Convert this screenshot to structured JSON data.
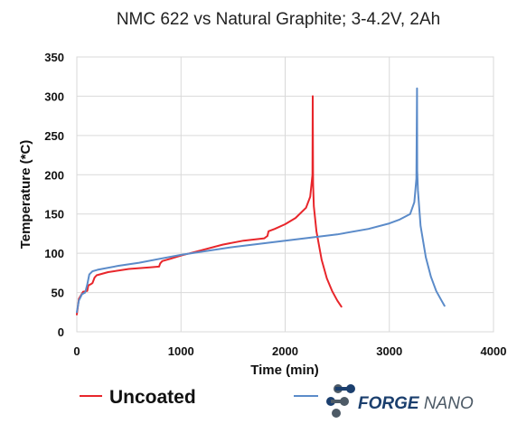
{
  "chart_data": {
    "type": "line",
    "title": "NMC 622 vs Natural Graphite; 3-4.2V, 2Ah",
    "xlabel": "Time (min)",
    "ylabel": "Temperature (*C)",
    "xlim": [
      0,
      4000
    ],
    "ylim": [
      0,
      350
    ],
    "x_ticks": [
      0,
      1000,
      2000,
      3000,
      4000
    ],
    "y_ticks": [
      0,
      50,
      100,
      150,
      200,
      250,
      300,
      350
    ],
    "grid": true,
    "legend_position": "bottom",
    "series": [
      {
        "name": "Uncoated",
        "color": "#e8262b",
        "x": [
          0,
          20,
          60,
          100,
          110,
          140,
          150,
          170,
          190,
          300,
          500,
          700,
          790,
          800,
          820,
          900,
          1000,
          1200,
          1400,
          1600,
          1800,
          1830,
          1840,
          1900,
          2000,
          2100,
          2200,
          2240,
          2262,
          2265,
          2268,
          2275,
          2300,
          2350,
          2400,
          2450,
          2500,
          2540
        ],
        "y": [
          22,
          42,
          51,
          52,
          59,
          61,
          62,
          69,
          72,
          76,
          80,
          82,
          83,
          87,
          90,
          93,
          97,
          104,
          111,
          116,
          119,
          122,
          128,
          131,
          137,
          145,
          158,
          172,
          200,
          300,
          188,
          160,
          128,
          92,
          68,
          52,
          40,
          32
        ]
      },
      {
        "name": "",
        "color": "#5b8bc9",
        "x": [
          0,
          20,
          50,
          80,
          100,
          120,
          150,
          200,
          400,
          600,
          800,
          1000,
          1500,
          2000,
          2500,
          2800,
          3000,
          3100,
          3200,
          3240,
          3260,
          3266,
          3268,
          3275,
          3300,
          3350,
          3400,
          3450,
          3500,
          3530
        ],
        "y": [
          25,
          40,
          48,
          50,
          60,
          73,
          77,
          79,
          84,
          88,
          93,
          98,
          108,
          116,
          124,
          131,
          138,
          143,
          150,
          165,
          195,
          310,
          205,
          180,
          135,
          95,
          70,
          52,
          40,
          33
        ]
      }
    ]
  },
  "legend": {
    "uncoated_label": "Uncoated"
  },
  "brand": {
    "name_part1": "FORGE",
    "name_part2": " NANO"
  },
  "colors": {
    "uncoated": "#e8262b",
    "coated": "#5b8bc9",
    "brand_dark": "#1b3f6e",
    "brand_gray": "#4d5a66"
  }
}
